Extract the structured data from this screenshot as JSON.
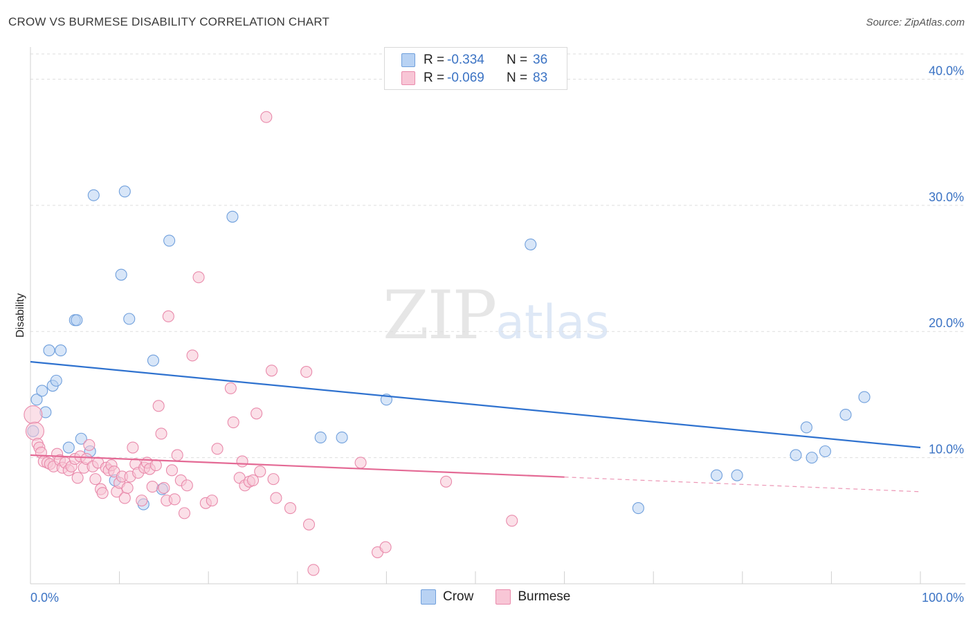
{
  "header": {
    "title": "CROW VS BURMESE DISABILITY CORRELATION CHART",
    "source": "Source: ZipAtlas.com"
  },
  "watermark": {
    "zip": "ZIP",
    "atlas": "atlas"
  },
  "legend_top": {
    "rows": [
      {
        "r_label": "R =",
        "r_value": "-0.334",
        "n_label": "N =",
        "n_value": "36"
      },
      {
        "r_label": "R =",
        "r_value": "-0.069",
        "n_label": "N =",
        "n_value": "83"
      }
    ]
  },
  "legend_bottom": {
    "items": [
      "Crow",
      "Burmese"
    ]
  },
  "colors": {
    "crow_fill": "#b8d2f3",
    "crow_stroke": "#6f9fdc",
    "crow_line": "#2f72cf",
    "burmese_fill": "#f8c6d6",
    "burmese_stroke": "#e98aab",
    "burmese_line": "#e46a95",
    "tick_text": "#3b73c4",
    "grid": "#dedede"
  },
  "chart_data": {
    "type": "scatter",
    "title": "CROW VS BURMESE DISABILITY CORRELATION CHART",
    "xlabel": "",
    "ylabel": "Disability",
    "xlim": [
      0,
      100
    ],
    "ylim": [
      0,
      42
    ],
    "x_tick_labels": [
      "0.0%",
      "100.0%"
    ],
    "y_ticks": [
      10,
      20,
      30,
      40
    ],
    "y_tick_labels": [
      "10.0%",
      "20.0%",
      "30.0%",
      "40.0%"
    ],
    "grid": "horizontal dashed",
    "legend": "bottom-center",
    "series": [
      {
        "name": "Crow",
        "R": -0.334,
        "N": 36,
        "trend": {
          "x": [
            0,
            100
          ],
          "y": [
            17.6,
            10.8
          ],
          "solid_to": 100
        },
        "points": [
          [
            0.3,
            12.1
          ],
          [
            0.7,
            14.6
          ],
          [
            1.3,
            15.3
          ],
          [
            1.7,
            13.6
          ],
          [
            2.1,
            18.5
          ],
          [
            2.5,
            15.7
          ],
          [
            2.9,
            16.1
          ],
          [
            3.4,
            18.5
          ],
          [
            4.3,
            10.8
          ],
          [
            5.0,
            20.9
          ],
          [
            5.2,
            20.9
          ],
          [
            5.7,
            11.5
          ],
          [
            6.7,
            10.5
          ],
          [
            7.1,
            30.8
          ],
          [
            9.5,
            8.2
          ],
          [
            10.2,
            24.5
          ],
          [
            10.6,
            31.1
          ],
          [
            11.1,
            21.0
          ],
          [
            12.7,
            6.3
          ],
          [
            13.8,
            17.7
          ],
          [
            14.8,
            7.5
          ],
          [
            15.6,
            27.2
          ],
          [
            22.7,
            29.1
          ],
          [
            32.6,
            11.6
          ],
          [
            35.0,
            11.6
          ],
          [
            40.0,
            14.6
          ],
          [
            56.2,
            26.9
          ],
          [
            68.3,
            6.0
          ],
          [
            77.1,
            8.6
          ],
          [
            79.4,
            8.6
          ],
          [
            86.0,
            10.2
          ],
          [
            87.2,
            12.4
          ],
          [
            87.8,
            10.0
          ],
          [
            89.3,
            10.5
          ],
          [
            91.6,
            13.4
          ],
          [
            93.7,
            14.8
          ]
        ]
      },
      {
        "name": "Burmese",
        "R": -0.069,
        "N": 83,
        "trend": {
          "x": [
            0,
            100
          ],
          "y": [
            10.2,
            7.3
          ],
          "solid_to": 60
        },
        "points": [
          [
            0.3,
            13.4
          ],
          [
            0.5,
            12.1
          ],
          [
            0.8,
            11.1
          ],
          [
            1.0,
            10.8
          ],
          [
            1.2,
            10.4
          ],
          [
            1.5,
            9.7
          ],
          [
            1.9,
            9.6
          ],
          [
            2.2,
            9.5
          ],
          [
            2.6,
            9.3
          ],
          [
            3.0,
            10.3
          ],
          [
            3.3,
            9.8
          ],
          [
            3.6,
            9.2
          ],
          [
            3.9,
            9.6
          ],
          [
            4.3,
            9.0
          ],
          [
            4.6,
            9.3
          ],
          [
            5.0,
            9.9
          ],
          [
            5.3,
            8.4
          ],
          [
            5.6,
            10.1
          ],
          [
            6.0,
            9.2
          ],
          [
            6.3,
            9.9
          ],
          [
            6.6,
            11.0
          ],
          [
            7.0,
            9.3
          ],
          [
            7.3,
            8.3
          ],
          [
            7.6,
            9.6
          ],
          [
            7.9,
            7.5
          ],
          [
            8.1,
            7.2
          ],
          [
            8.5,
            9.2
          ],
          [
            8.8,
            9.0
          ],
          [
            9.1,
            9.4
          ],
          [
            9.4,
            8.9
          ],
          [
            9.7,
            7.3
          ],
          [
            10.0,
            8.0
          ],
          [
            10.3,
            8.5
          ],
          [
            10.6,
            6.8
          ],
          [
            10.9,
            7.6
          ],
          [
            11.2,
            8.5
          ],
          [
            11.5,
            10.8
          ],
          [
            11.8,
            9.5
          ],
          [
            12.1,
            8.8
          ],
          [
            12.5,
            6.6
          ],
          [
            12.8,
            9.2
          ],
          [
            13.1,
            9.6
          ],
          [
            13.4,
            9.1
          ],
          [
            13.7,
            7.7
          ],
          [
            14.1,
            9.4
          ],
          [
            14.4,
            14.1
          ],
          [
            14.7,
            11.9
          ],
          [
            15.0,
            7.6
          ],
          [
            15.3,
            6.6
          ],
          [
            15.5,
            21.2
          ],
          [
            15.9,
            9.0
          ],
          [
            16.2,
            6.7
          ],
          [
            16.5,
            10.2
          ],
          [
            16.9,
            8.2
          ],
          [
            17.3,
            5.6
          ],
          [
            17.6,
            7.8
          ],
          [
            18.2,
            18.1
          ],
          [
            18.9,
            24.3
          ],
          [
            19.7,
            6.4
          ],
          [
            20.4,
            6.6
          ],
          [
            21.0,
            10.7
          ],
          [
            22.5,
            15.5
          ],
          [
            22.8,
            12.8
          ],
          [
            23.5,
            8.4
          ],
          [
            23.8,
            9.7
          ],
          [
            24.1,
            7.8
          ],
          [
            24.6,
            8.1
          ],
          [
            25.0,
            8.2
          ],
          [
            25.4,
            13.5
          ],
          [
            25.8,
            8.9
          ],
          [
            26.5,
            37.0
          ],
          [
            27.1,
            16.9
          ],
          [
            27.3,
            8.3
          ],
          [
            27.6,
            6.8
          ],
          [
            29.2,
            6.0
          ],
          [
            31.0,
            16.8
          ],
          [
            31.3,
            4.7
          ],
          [
            31.8,
            1.1
          ],
          [
            37.1,
            9.6
          ],
          [
            39.0,
            2.5
          ],
          [
            39.9,
            2.9
          ],
          [
            46.7,
            8.1
          ],
          [
            54.1,
            5.0
          ]
        ]
      }
    ]
  }
}
